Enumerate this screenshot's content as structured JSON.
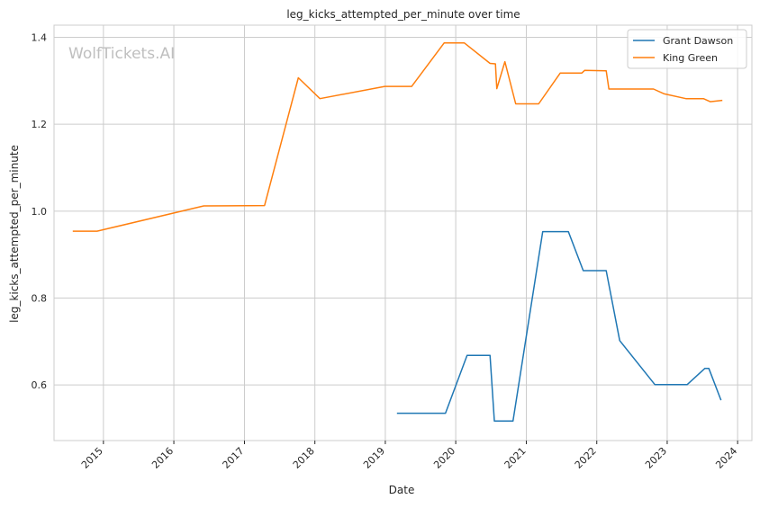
{
  "chart_data": {
    "type": "line",
    "title": "leg_kicks_attempted_per_minute over time",
    "xlabel": "Date",
    "ylabel": "leg_kicks_attempted_per_minute",
    "watermark": "WolfTickets.AI",
    "x_ticks": [
      "2015",
      "2016",
      "2017",
      "2018",
      "2019",
      "2020",
      "2021",
      "2022",
      "2023",
      "2024"
    ],
    "y_ticks": [
      "0.6",
      "0.8",
      "1.0",
      "1.2",
      "1.4"
    ],
    "xlim": [
      "2014-04-20",
      "2024-03-15"
    ],
    "ylim": [
      0.472,
      1.428
    ],
    "grid": true,
    "legend_position": "top-right",
    "colors": {
      "Grant Dawson": "#1f77b4",
      "King Green": "#ff7f0e",
      "grid": "#cccccc",
      "axes": "#cccccc",
      "watermark": "#bfbfbf"
    },
    "series": [
      {
        "name": "Grant Dawson",
        "color": "#1f77b4",
        "points": [
          [
            "2019-03-02",
            0.535
          ],
          [
            "2019-11-09",
            0.535
          ],
          [
            "2020-02-29",
            0.668
          ],
          [
            "2020-06-27",
            0.668
          ],
          [
            "2020-07-19",
            0.517
          ],
          [
            "2020-10-24",
            0.517
          ],
          [
            "2021-03-27",
            0.953
          ],
          [
            "2021-08-07",
            0.953
          ],
          [
            "2021-10-23",
            0.863
          ],
          [
            "2022-02-19",
            0.863
          ],
          [
            "2022-04-30",
            0.702
          ],
          [
            "2022-10-29",
            0.601
          ],
          [
            "2023-04-15",
            0.601
          ],
          [
            "2023-07-15",
            0.638
          ],
          [
            "2023-08-05",
            0.638
          ],
          [
            "2023-10-07",
            0.565
          ]
        ]
      },
      {
        "name": "King Green",
        "color": "#ff7f0e",
        "points": [
          [
            "2014-07-26",
            0.954
          ],
          [
            "2014-11-29",
            0.954
          ],
          [
            "2016-06-04",
            1.012
          ],
          [
            "2017-04-15",
            1.013
          ],
          [
            "2017-10-07",
            1.307
          ],
          [
            "2018-01-27",
            1.259
          ],
          [
            "2018-12-29",
            1.287
          ],
          [
            "2019-05-18",
            1.287
          ],
          [
            "2019-11-02",
            1.387
          ],
          [
            "2020-02-15",
            1.387
          ],
          [
            "2020-06-27",
            1.34
          ],
          [
            "2020-07-25",
            1.339
          ],
          [
            "2020-08-01",
            1.282
          ],
          [
            "2020-09-12",
            1.344
          ],
          [
            "2020-11-07",
            1.247
          ],
          [
            "2021-03-06",
            1.247
          ],
          [
            "2021-06-26",
            1.318
          ],
          [
            "2021-10-16",
            1.318
          ],
          [
            "2021-10-30",
            1.324
          ],
          [
            "2022-02-19",
            1.323
          ],
          [
            "2022-03-05",
            1.281
          ],
          [
            "2022-10-22",
            1.281
          ],
          [
            "2022-12-17",
            1.27
          ],
          [
            "2023-04-08",
            1.259
          ],
          [
            "2023-07-08",
            1.259
          ],
          [
            "2023-08-12",
            1.252
          ],
          [
            "2023-10-14",
            1.255
          ]
        ]
      }
    ]
  }
}
